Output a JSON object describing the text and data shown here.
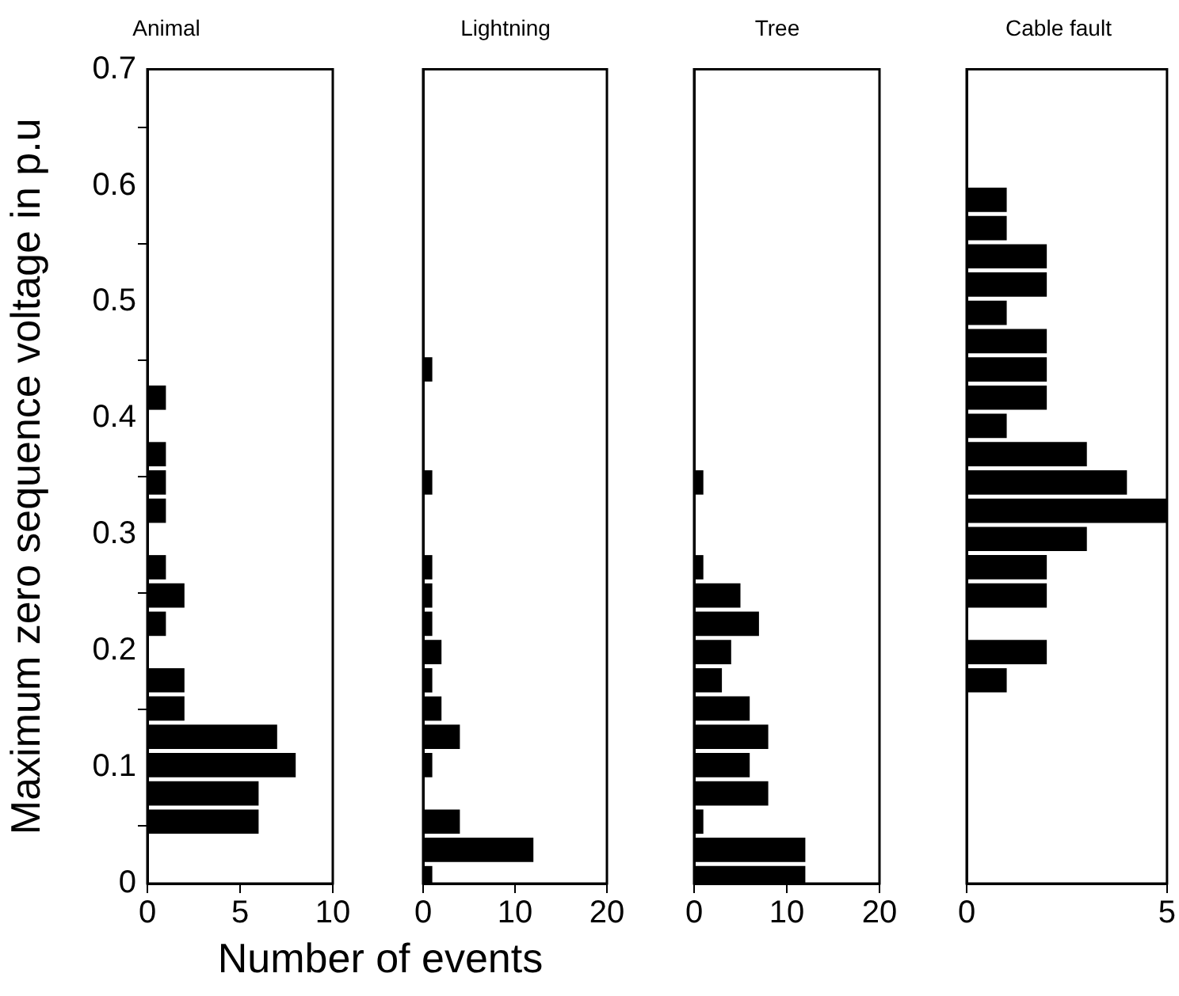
{
  "chart_data": [
    {
      "type": "histogram",
      "orientation": "horizontal",
      "title": "Animal",
      "xlabel": "Number of events",
      "ylabel": "Maximum zero sequence voltage in p.u",
      "color": "#000000",
      "bins": [
        -0.0075,
        0.0168,
        0.0411,
        0.0654,
        0.0897,
        0.114,
        0.1383,
        0.1626,
        0.1869,
        0.2112,
        0.2355,
        0.2598,
        0.2841,
        0.3084,
        0.3327,
        0.357,
        0.3813,
        0.4056,
        0.4299,
        0.4542,
        0.4785,
        0.5028,
        0.5271,
        0.5514,
        0.5757,
        0.6
      ],
      "values": [
        0,
        0,
        6,
        6,
        8,
        7,
        2,
        2,
        0,
        1,
        2,
        1,
        0,
        1,
        1,
        1,
        0,
        1,
        0,
        0,
        0,
        0,
        0,
        0,
        0
      ],
      "xlim": [
        0,
        10
      ],
      "xticks": [
        0,
        5,
        10
      ],
      "ylim": [
        0,
        0.7
      ],
      "yticks": [
        0,
        0.1,
        0.2,
        0.3,
        0.4,
        0.5,
        0.6,
        0.7
      ]
    },
    {
      "type": "histogram",
      "orientation": "horizontal",
      "title": "Lightning",
      "color": "#000000",
      "bins": [
        -0.0075,
        0.0168,
        0.0411,
        0.0654,
        0.0897,
        0.114,
        0.1383,
        0.1626,
        0.1869,
        0.2112,
        0.2355,
        0.2598,
        0.2841,
        0.3084,
        0.3327,
        0.357,
        0.3813,
        0.4056,
        0.4299,
        0.4542,
        0.4785,
        0.5028,
        0.5271,
        0.5514,
        0.5757,
        0.6
      ],
      "values": [
        1,
        12,
        4,
        0,
        1,
        4,
        2,
        1,
        2,
        1,
        1,
        1,
        0,
        0,
        1,
        0,
        0,
        0,
        1,
        0,
        0,
        0,
        0,
        0,
        0
      ],
      "xlim": [
        0,
        20
      ],
      "xticks": [
        0,
        10,
        20
      ],
      "ylim": [
        0,
        0.7
      ],
      "yticks": [
        0,
        0.1,
        0.2,
        0.3,
        0.4,
        0.5,
        0.6,
        0.7
      ],
      "tick_labels": "x"
    },
    {
      "type": "histogram",
      "orientation": "horizontal",
      "title": "Tree",
      "color": "#000000",
      "bins": [
        -0.0075,
        0.0168,
        0.0411,
        0.0654,
        0.0897,
        0.114,
        0.1383,
        0.1626,
        0.1869,
        0.2112,
        0.2355,
        0.2598,
        0.2841,
        0.3084,
        0.3327,
        0.357,
        0.3813,
        0.4056,
        0.4299,
        0.4542,
        0.4785,
        0.5028,
        0.5271,
        0.5514,
        0.5757,
        0.6
      ],
      "values": [
        12,
        12,
        1,
        8,
        6,
        8,
        6,
        3,
        4,
        7,
        5,
        1,
        0,
        0,
        1,
        0,
        0,
        0,
        0,
        0,
        0,
        0,
        0,
        0,
        0
      ],
      "xlim": [
        0,
        20
      ],
      "xticks": [
        0,
        10,
        20
      ],
      "ylim": [
        0,
        0.7
      ],
      "yticks": [
        0,
        0.1,
        0.2,
        0.3,
        0.4,
        0.5,
        0.6,
        0.7
      ],
      "tick_labels": "x"
    },
    {
      "type": "histogram",
      "orientation": "horizontal",
      "title": "Cable fault",
      "color": "#000000",
      "bins": [
        -0.0075,
        0.0168,
        0.0411,
        0.0654,
        0.0897,
        0.114,
        0.1383,
        0.1626,
        0.1869,
        0.2112,
        0.2355,
        0.2598,
        0.2841,
        0.3084,
        0.3327,
        0.357,
        0.3813,
        0.4056,
        0.4299,
        0.4542,
        0.4785,
        0.5028,
        0.5271,
        0.5514,
        0.5757,
        0.6
      ],
      "values": [
        0,
        0,
        0,
        0,
        0,
        0,
        0,
        1,
        2,
        0,
        2,
        2,
        3,
        5,
        4,
        3,
        1,
        2,
        2,
        2,
        1,
        2,
        2,
        1,
        1
      ],
      "xlim": [
        0,
        5
      ],
      "xticks": [
        0,
        5
      ],
      "ylim": [
        0,
        0.7
      ],
      "yticks": [
        0,
        0.1,
        0.2,
        0.3,
        0.4,
        0.5,
        0.6,
        0.7
      ],
      "tick_labels": "x"
    }
  ]
}
